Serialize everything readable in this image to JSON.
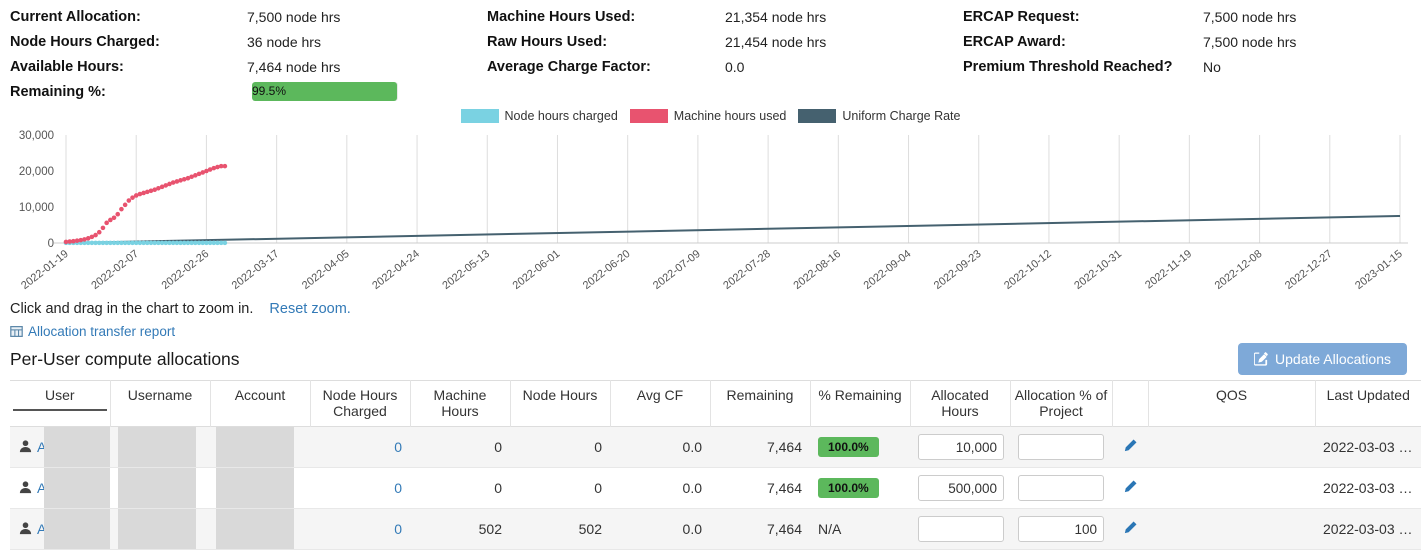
{
  "summary": {
    "col1": {
      "rows": [
        {
          "label": "Current Allocation:",
          "value": "7,500 node hrs"
        },
        {
          "label": "Node Hours Charged:",
          "value": "36 node hrs"
        },
        {
          "label": "Available Hours:",
          "value": "7,464 node hrs"
        }
      ],
      "remaining_label": "Remaining %:",
      "remaining_text": "99.5%",
      "remaining_value": 99.5
    },
    "col2": {
      "rows": [
        {
          "label": "Machine Hours Used:",
          "value": "21,354 node hrs"
        },
        {
          "label": "Raw Hours Used:",
          "value": "21,454 node hrs"
        },
        {
          "label": "Average Charge Factor:",
          "value": "0.0"
        }
      ]
    },
    "col3": {
      "rows": [
        {
          "label": "ERCAP Request:",
          "value": "7,500 node hrs"
        },
        {
          "label": "ERCAP Award:",
          "value": "7,500 node hrs"
        },
        {
          "label": "Premium Threshold Reached?",
          "value": "No"
        }
      ]
    }
  },
  "chart_data": {
    "type": "scatter",
    "title": "",
    "legend_position": "top",
    "grid": "vertical",
    "x_axis": {
      "span_days": 361,
      "labels": [
        "2022-01-19",
        "2022-02-07",
        "2022-02-26",
        "2022-03-17",
        "2022-04-05",
        "2022-04-24",
        "2022-05-13",
        "2022-06-01",
        "2022-06-20",
        "2022-07-09",
        "2022-07-28",
        "2022-08-16",
        "2022-09-04",
        "2022-09-23",
        "2022-10-12",
        "2022-10-31",
        "2022-11-19",
        "2022-12-08",
        "2022-12-27",
        "2023-01-15"
      ]
    },
    "y_axis": {
      "min": 0,
      "max": 30000,
      "ticks": [
        "0",
        "10,000",
        "20,000",
        "30,000"
      ]
    },
    "series": [
      {
        "name": "Node hours charged",
        "color": "#7ad2e2",
        "style": "points",
        "points": [
          [
            0,
            36
          ],
          [
            1,
            36
          ],
          [
            2,
            36
          ],
          [
            3,
            36
          ],
          [
            4,
            36
          ],
          [
            5,
            36
          ],
          [
            6,
            36
          ],
          [
            7,
            36
          ],
          [
            8,
            36
          ],
          [
            9,
            36
          ],
          [
            10,
            36
          ],
          [
            11,
            36
          ],
          [
            12,
            36
          ],
          [
            13,
            36
          ],
          [
            14,
            36
          ],
          [
            15,
            36
          ],
          [
            16,
            36
          ],
          [
            17,
            36
          ],
          [
            18,
            36
          ],
          [
            19,
            36
          ],
          [
            20,
            36
          ],
          [
            21,
            36
          ],
          [
            22,
            36
          ],
          [
            23,
            36
          ],
          [
            24,
            36
          ],
          [
            25,
            36
          ],
          [
            26,
            36
          ],
          [
            27,
            36
          ],
          [
            28,
            36
          ],
          [
            29,
            36
          ],
          [
            30,
            36
          ],
          [
            31,
            36
          ],
          [
            32,
            36
          ],
          [
            33,
            36
          ],
          [
            34,
            36
          ],
          [
            35,
            36
          ],
          [
            36,
            36
          ],
          [
            37,
            36
          ],
          [
            38,
            36
          ],
          [
            39,
            36
          ],
          [
            40,
            36
          ],
          [
            41,
            36
          ],
          [
            42,
            36
          ],
          [
            43,
            36
          ]
        ]
      },
      {
        "name": "Machine hours used",
        "color": "#e8536f",
        "style": "points",
        "points": [
          [
            0,
            300
          ],
          [
            1,
            400
          ],
          [
            2,
            500
          ],
          [
            3,
            650
          ],
          [
            4,
            800
          ],
          [
            5,
            1000
          ],
          [
            6,
            1300
          ],
          [
            7,
            1700
          ],
          [
            8,
            2200
          ],
          [
            9,
            3000
          ],
          [
            10,
            4200
          ],
          [
            11,
            5600
          ],
          [
            12,
            6400
          ],
          [
            13,
            7000
          ],
          [
            14,
            8000
          ],
          [
            15,
            9400
          ],
          [
            16,
            10600
          ],
          [
            17,
            11800
          ],
          [
            18,
            12600
          ],
          [
            19,
            13200
          ],
          [
            20,
            13600
          ],
          [
            21,
            13900
          ],
          [
            22,
            14200
          ],
          [
            23,
            14500
          ],
          [
            24,
            14800
          ],
          [
            25,
            15200
          ],
          [
            26,
            15600
          ],
          [
            27,
            16000
          ],
          [
            28,
            16400
          ],
          [
            29,
            16800
          ],
          [
            30,
            17100
          ],
          [
            31,
            17400
          ],
          [
            32,
            17700
          ],
          [
            33,
            18000
          ],
          [
            34,
            18400
          ],
          [
            35,
            18800
          ],
          [
            36,
            19200
          ],
          [
            37,
            19600
          ],
          [
            38,
            20000
          ],
          [
            39,
            20400
          ],
          [
            40,
            20800
          ],
          [
            41,
            21100
          ],
          [
            42,
            21354
          ],
          [
            43,
            21354
          ]
        ]
      },
      {
        "name": "Uniform Charge Rate",
        "color": "#45616f",
        "style": "line",
        "points": [
          [
            0,
            0
          ],
          [
            361,
            7500
          ]
        ]
      }
    ]
  },
  "texts": {
    "zoom_hint": "Click and drag in the chart to zoom in.",
    "reset_zoom": "Reset zoom.",
    "transfer_report": "Allocation transfer report",
    "section_title": "Per-User compute allocations",
    "update_button": "Update Allocations"
  },
  "table": {
    "columns": [
      "User",
      "Username",
      "Account",
      "Node Hours Charged",
      "Machine Hours",
      "Node Hours",
      "Avg CF",
      "Remaining",
      "% Remaining",
      "Allocated Hours",
      "Allocation % of Project",
      "",
      "QOS",
      "Last Updated"
    ],
    "rows": [
      {
        "user": "A",
        "node_hours_charged": "0",
        "machine_hours": "0",
        "node_hours": "0",
        "avg_cf": "0.0",
        "remaining": "7,464",
        "pct_remaining": "100.0%",
        "allocated_hours": "10,000",
        "allocation_pct": "",
        "qos": "",
        "last_updated": "2022-03-03 …"
      },
      {
        "user": "A",
        "node_hours_charged": "0",
        "machine_hours": "0",
        "node_hours": "0",
        "avg_cf": "0.0",
        "remaining": "7,464",
        "pct_remaining": "100.0%",
        "allocated_hours": "500,000",
        "allocation_pct": "",
        "qos": "",
        "last_updated": "2022-03-03 …"
      },
      {
        "user": "A",
        "node_hours_charged": "0",
        "machine_hours": "502",
        "node_hours": "502",
        "avg_cf": "0.0",
        "remaining": "7,464",
        "pct_remaining": "N/A",
        "allocated_hours": "",
        "allocation_pct": "100",
        "qos": "",
        "last_updated": "2022-03-03 …"
      }
    ]
  },
  "colors": {
    "accent_green": "#5cb85c",
    "link_blue": "#337ab7",
    "button_blue": "#7ea9d8"
  }
}
